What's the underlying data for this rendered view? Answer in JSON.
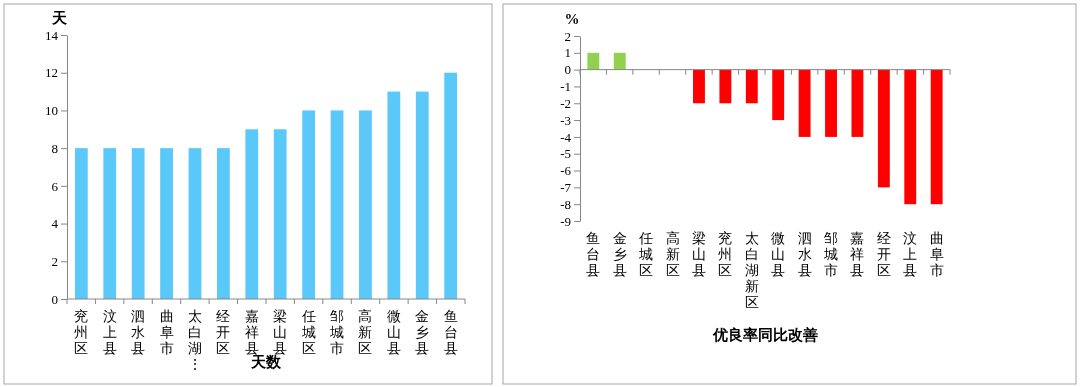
{
  "chart_data": [
    {
      "type": "bar",
      "ylabel": "天",
      "xlabel": "天数",
      "categories": [
        "兖州区",
        "汶上县",
        "泗水县",
        "曲阜市",
        "太白湖⋮",
        "经开区",
        "嘉祥县",
        "梁山县",
        "任城区",
        "邹城市",
        "高新区",
        "微山县",
        "金乡县",
        "鱼台县"
      ],
      "series": [
        {
          "color": "#5bc8fa",
          "values": [
            8,
            8,
            8,
            8,
            8,
            8,
            9,
            9,
            10,
            10,
            10,
            11,
            11,
            12
          ]
        }
      ],
      "ylim": [
        0,
        14
      ],
      "yticks": [
        0,
        2,
        4,
        6,
        8,
        10,
        12,
        14
      ]
    },
    {
      "type": "bar",
      "ylabel": "%",
      "xlabel": "优良率同比改善",
      "categories": [
        "鱼台县",
        "金乡县",
        "任城区",
        "高新区",
        "梁山县",
        "兖州区",
        "太白湖新区",
        "微山县",
        "泗水县",
        "邹城市",
        "嘉祥县",
        "经开区",
        "汶上县",
        "曲阜市"
      ],
      "series": [
        {
          "values": [
            1,
            1,
            0,
            0,
            -2,
            -2,
            -2,
            -3,
            -4,
            -4,
            -4,
            -7,
            -8,
            -8
          ],
          "colors": [
            "#92d050",
            "#92d050",
            "#ff0000",
            "#ff0000",
            "#ff0000",
            "#ff0000",
            "#ff0000",
            "#ff0000",
            "#ff0000",
            "#ff0000",
            "#ff0000",
            "#ff0000",
            "#ff0000",
            "#ff0000"
          ]
        }
      ],
      "ylim": [
        -9,
        2
      ],
      "yticks": [
        -9,
        -8,
        -7,
        -6,
        -5,
        -4,
        -3,
        -2,
        -1,
        0,
        1,
        2
      ]
    }
  ]
}
